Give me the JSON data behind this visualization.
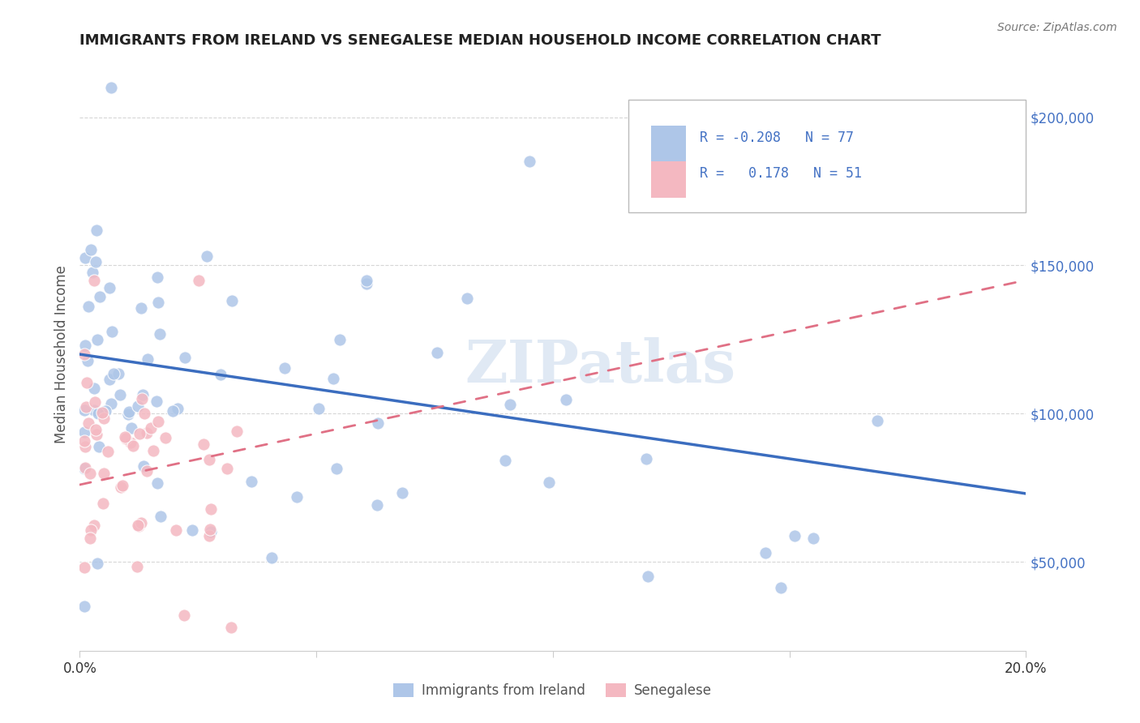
{
  "title": "IMMIGRANTS FROM IRELAND VS SENEGALESE MEDIAN HOUSEHOLD INCOME CORRELATION CHART",
  "source": "Source: ZipAtlas.com",
  "ylabel": "Median Household Income",
  "yticks": [
    50000,
    100000,
    150000,
    200000
  ],
  "ytick_labels": [
    "$50,000",
    "$100,000",
    "$150,000",
    "$200,000"
  ],
  "xlim": [
    0.0,
    0.2
  ],
  "ylim": [
    20000,
    220000
  ],
  "legend_label1": "Immigrants from Ireland",
  "legend_label2": "Senegalese",
  "legend_R1": "-0.208",
  "legend_N1": "77",
  "legend_R2": "0.178",
  "legend_N2": "51",
  "blue_line_x": [
    0.0,
    0.2
  ],
  "blue_line_y": [
    120000,
    73000
  ],
  "pink_line_x": [
    0.0,
    0.2
  ],
  "pink_line_y": [
    76000,
    145000
  ],
  "watermark": "ZIPatlas",
  "background_color": "#ffffff",
  "scatter_blue_color": "#aec6e8",
  "scatter_pink_color": "#f4b8c1",
  "blue_line_color": "#3b6dbf",
  "pink_line_color": "#e07085",
  "grid_color": "#cccccc",
  "title_color": "#222222",
  "source_color": "#777777",
  "ytick_color": "#4472c4",
  "xtick_color": "#333333"
}
